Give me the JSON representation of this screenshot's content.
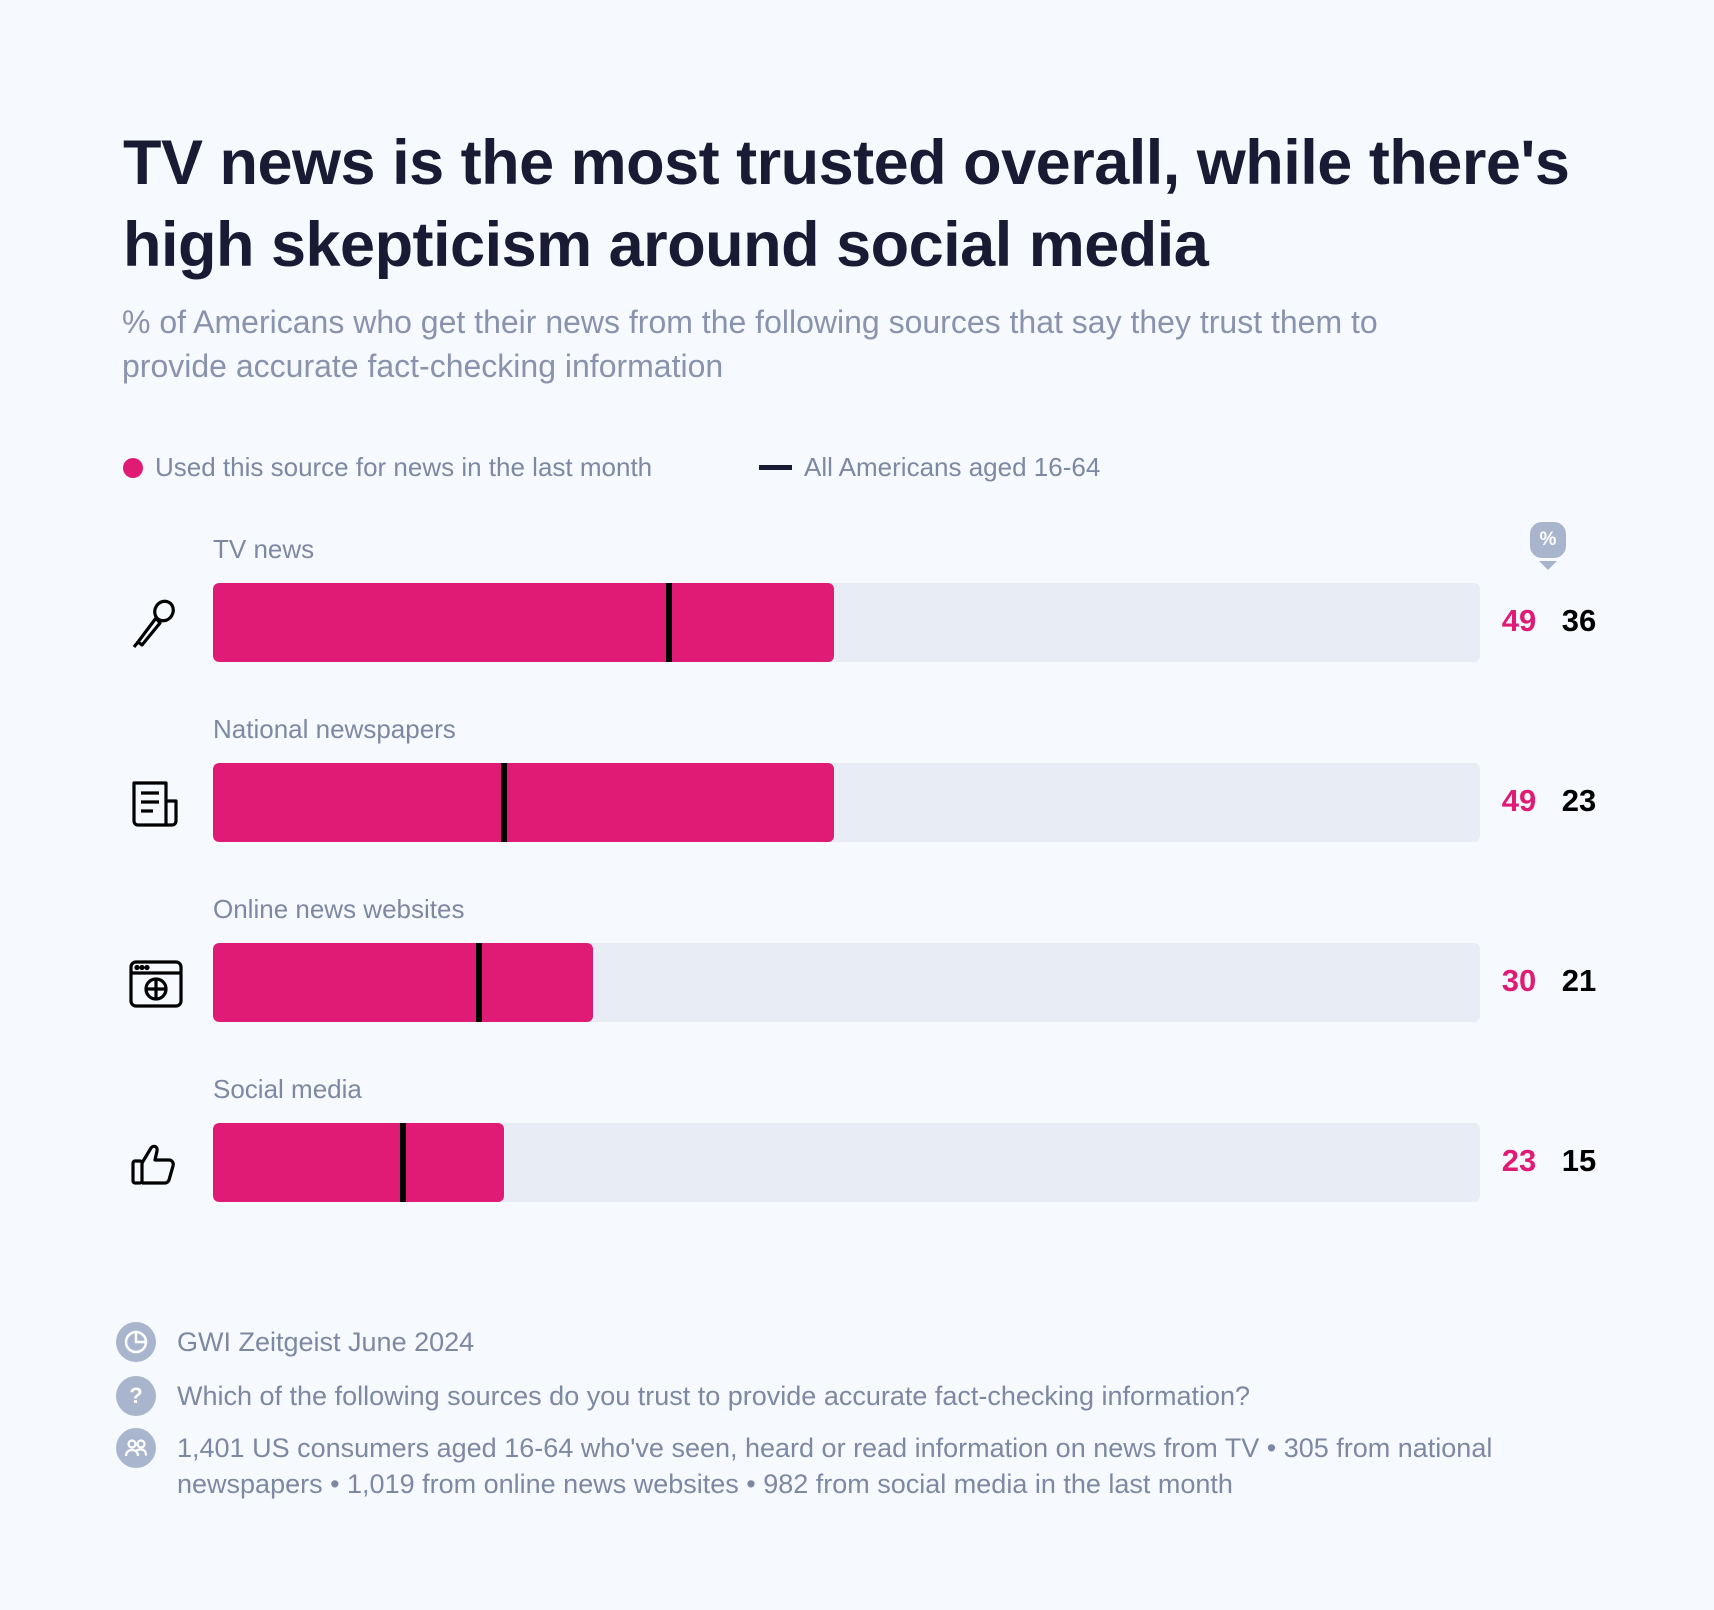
{
  "title": "TV news is the most trusted overall, while there's high skepticism around social media",
  "subtitle": "% of Americans who get their news from the following sources that say they trust them to provide accurate fact-checking information",
  "colors": {
    "used_source": "#DF1B76",
    "all_americans": "#191A33",
    "track": "#E8ECF4",
    "background": "#F6F9FE"
  },
  "legend": [
    {
      "label": "Used this source for news in the last month",
      "marker": "dot"
    },
    {
      "label": "All Americans aged 16-64",
      "marker": "line"
    }
  ],
  "unit_badge": "%",
  "chart_data": {
    "type": "bar",
    "orientation": "horizontal",
    "xlim": [
      0,
      100
    ],
    "categories": [
      "TV news",
      "National newspapers",
      "Online news websites",
      "Social media"
    ],
    "icons": [
      "microphone-icon",
      "newspaper-icon",
      "browser-globe-icon",
      "thumbs-up-icon"
    ],
    "series": [
      {
        "name": "Used this source for news in the last month",
        "values": [
          49,
          49,
          30,
          23
        ]
      },
      {
        "name": "All Americans aged 16-64",
        "values": [
          36,
          23,
          21,
          15
        ]
      }
    ]
  },
  "footer": {
    "source": "GWI Zeitgeist June 2024",
    "question": "Which of the following sources do you trust to provide accurate fact-checking information?",
    "base": "1,401 US consumers aged 16-64 who've seen, heard or read information on news from TV • 305 from national newspapers • 1,019 from online news websites • 982 from social media in the last month",
    "icons": [
      "pie-chart-icon",
      "question-icon",
      "people-icon"
    ],
    "question_glyph": "?"
  }
}
